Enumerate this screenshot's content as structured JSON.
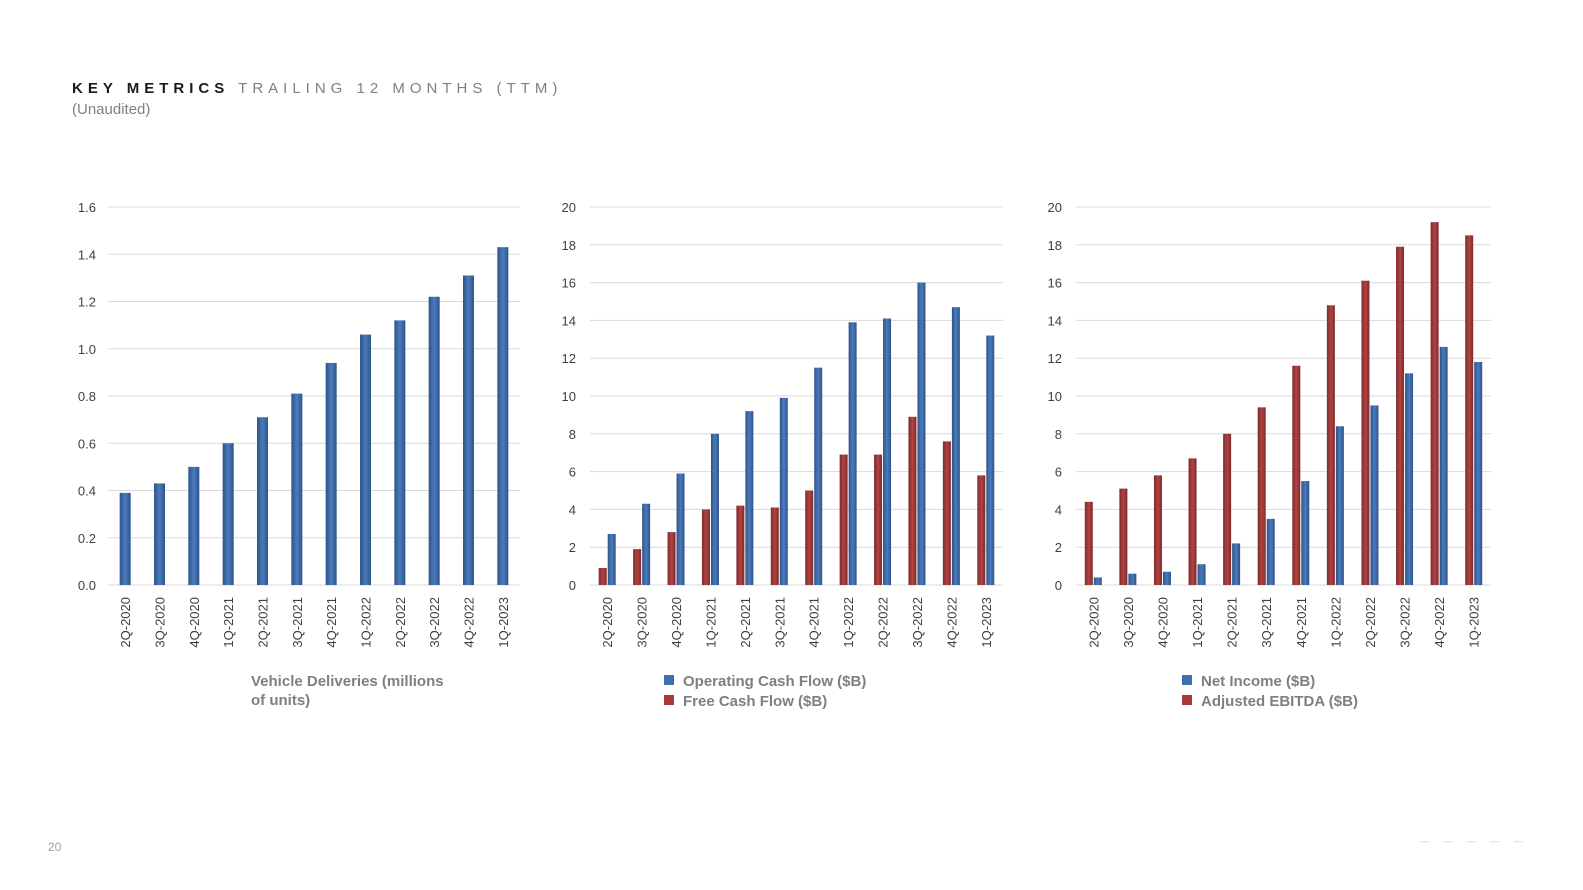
{
  "header": {
    "title": "KEY METRICS",
    "subtitle": "TRAILING 12 MONTHS (TTM)",
    "note": "(Unaudited)"
  },
  "footer": {
    "page_number": "20",
    "logo_text": "TESLA"
  },
  "colors": {
    "blue": "#3f6fab",
    "blue_dark": "#2e5488",
    "red": "#a83a3a",
    "red_dark": "#7f2a2a",
    "grid": "#d9d9d9",
    "tick_text": "#404040",
    "legend_text": "#7f7f7f"
  },
  "chart_data": [
    {
      "type": "bar",
      "categories": [
        "2Q-2020",
        "3Q-2020",
        "4Q-2020",
        "1Q-2021",
        "2Q-2021",
        "3Q-2021",
        "4Q-2021",
        "1Q-2022",
        "2Q-2022",
        "3Q-2022",
        "4Q-2022",
        "1Q-2023"
      ],
      "series": [
        {
          "name": "Vehicle Deliveries (millions of units)",
          "values": [
            0.39,
            0.43,
            0.5,
            0.6,
            0.71,
            0.81,
            0.94,
            1.06,
            1.12,
            1.22,
            1.31,
            1.43
          ]
        }
      ],
      "ylim": [
        0,
        1.6
      ],
      "yticks": [
        "0.0",
        "0.2",
        "0.4",
        "0.6",
        "0.8",
        "1.0",
        "1.2",
        "1.4",
        "1.6"
      ],
      "legend_lines": [
        "Vehicle Deliveries (millions",
        "of units)"
      ],
      "grid": true,
      "legend_position": "bottom"
    },
    {
      "type": "bar",
      "categories": [
        "2Q-2020",
        "3Q-2020",
        "4Q-2020",
        "1Q-2021",
        "2Q-2021",
        "3Q-2021",
        "4Q-2021",
        "1Q-2022",
        "2Q-2022",
        "3Q-2022",
        "4Q-2022",
        "1Q-2023"
      ],
      "series": [
        {
          "name": "Operating Cash Flow ($B)",
          "values": [
            2.7,
            4.3,
            5.9,
            8.0,
            9.2,
            9.9,
            11.5,
            13.9,
            14.1,
            16.0,
            14.7,
            13.2
          ]
        },
        {
          "name": "Free Cash Flow ($B)",
          "values": [
            0.9,
            1.9,
            2.8,
            4.0,
            4.2,
            4.1,
            5.0,
            6.9,
            6.9,
            8.9,
            7.6,
            5.8
          ]
        }
      ],
      "ylim": [
        0,
        20
      ],
      "yticks": [
        "0",
        "2",
        "4",
        "6",
        "8",
        "10",
        "12",
        "14",
        "16",
        "18",
        "20"
      ],
      "grid": true,
      "legend_position": "bottom"
    },
    {
      "type": "bar",
      "categories": [
        "2Q-2020",
        "3Q-2020",
        "4Q-2020",
        "1Q-2021",
        "2Q-2021",
        "3Q-2021",
        "4Q-2021",
        "1Q-2022",
        "2Q-2022",
        "3Q-2022",
        "4Q-2022",
        "1Q-2023"
      ],
      "series": [
        {
          "name": "Net Income ($B)",
          "values": [
            0.4,
            0.6,
            0.7,
            1.1,
            2.2,
            3.5,
            5.5,
            8.4,
            9.5,
            11.2,
            12.6,
            11.8
          ]
        },
        {
          "name": "Adjusted EBITDA ($B)",
          "values": [
            4.4,
            5.1,
            5.8,
            6.7,
            8.0,
            9.4,
            11.6,
            14.8,
            16.1,
            17.9,
            19.2,
            18.5
          ]
        }
      ],
      "ylim": [
        0,
        20
      ],
      "yticks": [
        "0",
        "2",
        "4",
        "6",
        "8",
        "10",
        "12",
        "14",
        "16",
        "18",
        "20"
      ],
      "grid": true,
      "legend_position": "bottom"
    }
  ]
}
